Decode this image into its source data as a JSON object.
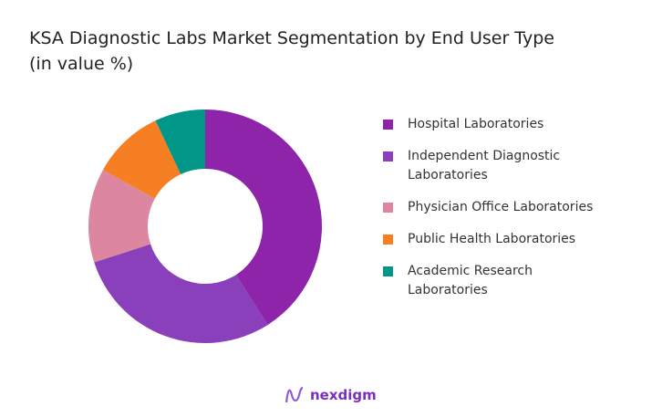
{
  "chart_data": {
    "type": "pie",
    "donut": true,
    "title": "KSA Diagnostic Labs Market Segmentation by End User Type (in value %)",
    "categories": [
      "Hospital Laboratories",
      "Independent Diagnostic Laboratories",
      "Physician Office Laboratories",
      "Public Health Laboratories",
      "Academic Research Laboratories"
    ],
    "values": [
      41,
      29,
      13,
      10,
      7
    ],
    "colors": [
      "#8e24aa",
      "#8a3fbb",
      "#dc879f",
      "#f57f22",
      "#009688"
    ],
    "legend_position": "right"
  },
  "brand": {
    "name": "nexdigm"
  }
}
